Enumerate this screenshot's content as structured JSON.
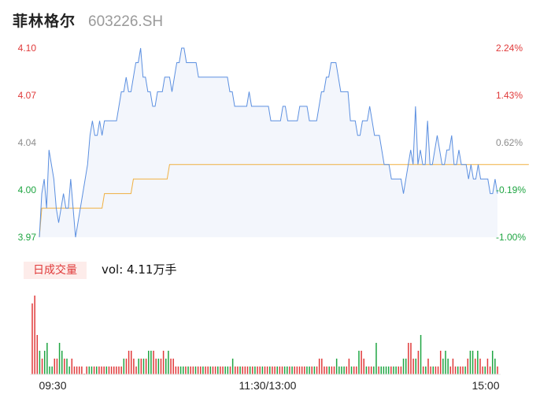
{
  "header": {
    "name": "菲林格尔",
    "code": "603226.SH"
  },
  "chart_data": [
    {
      "type": "line",
      "title": "",
      "y_left_ticks": [
        "4.10",
        "4.07",
        "4.04",
        "4.00",
        "3.97"
      ],
      "y_right_ticks": [
        "2.24%",
        "1.43%",
        "0.62%",
        "-0.19%",
        "-1.00%"
      ],
      "ylim": [
        3.97,
        4.1
      ],
      "x_ticks": [
        "09:30",
        "11:30/13:00",
        "15:00"
      ],
      "colors": {
        "price": "#5b8fe0",
        "avg": "#f0b040",
        "up": "#e03a3a",
        "down": "#1fa542",
        "neutral": "#8c8c8c"
      },
      "series": [
        {
          "values": [
            3.97,
            4.0,
            4.01,
            3.99,
            4.03,
            4.02,
            4.01,
            3.99,
            3.98,
            3.99,
            4.0,
            3.99,
            3.99,
            4.01,
            3.99,
            3.97,
            3.98,
            3.99,
            4.0,
            4.01,
            4.02,
            4.04,
            4.05,
            4.04,
            4.04,
            4.05,
            4.04,
            4.05,
            4.05,
            4.05,
            4.05,
            4.05,
            4.05,
            4.06,
            4.07,
            4.07,
            4.08,
            4.07,
            4.07,
            4.08,
            4.09,
            4.09,
            4.1,
            4.08,
            4.08,
            4.07,
            4.07,
            4.06,
            4.06,
            4.07,
            4.07,
            4.07,
            4.08,
            4.08,
            4.08,
            4.07,
            4.08,
            4.09,
            4.09,
            4.1,
            4.1,
            4.09,
            4.09,
            4.09,
            4.09,
            4.09,
            4.08,
            4.08,
            4.08,
            4.08,
            4.08,
            4.08,
            4.08,
            4.08,
            4.08,
            4.08,
            4.08,
            4.08,
            4.08,
            4.07,
            4.07,
            4.06,
            4.06,
            4.06,
            4.06,
            4.06,
            4.06,
            4.07,
            4.06,
            4.06,
            4.06,
            4.06,
            4.06,
            4.06,
            4.06,
            4.06,
            4.05,
            4.05,
            4.05,
            4.05,
            4.05,
            4.06,
            4.06,
            4.05,
            4.05,
            4.05,
            4.05,
            4.05,
            4.06,
            4.06,
            4.06,
            4.06,
            4.05,
            4.05,
            4.05,
            4.05,
            4.06,
            4.07,
            4.07,
            4.08,
            4.08,
            4.09,
            4.09,
            4.09,
            4.08,
            4.07,
            4.07,
            4.07,
            4.07,
            4.05,
            4.05,
            4.05,
            4.04,
            4.04,
            4.05,
            4.05,
            4.05,
            4.06,
            4.05,
            4.04,
            4.04,
            4.04,
            4.03,
            4.02,
            4.02,
            4.02,
            4.01,
            4.01,
            4.01,
            4.01,
            4.01,
            4.0,
            4.01,
            4.02,
            4.03,
            4.02,
            4.06,
            4.02,
            4.03,
            4.02,
            4.02,
            4.05,
            4.02,
            4.02,
            4.03,
            4.04,
            4.03,
            4.02,
            4.02,
            4.03,
            4.03,
            4.04,
            4.02,
            4.02,
            4.03,
            4.02,
            4.02,
            4.02,
            4.01,
            4.02,
            4.01,
            4.01,
            4.02,
            4.01,
            4.01,
            4.01,
            4.01,
            4.0,
            4.0,
            4.01,
            4.0
          ],
          "name": ""
        },
        {
          "values": [
            3.97,
            3.99,
            3.99,
            3.99,
            3.99,
            3.99,
            3.99,
            3.99,
            3.99,
            3.99,
            3.99,
            3.99,
            3.99,
            3.99,
            3.99,
            3.99,
            3.99,
            3.99,
            3.99,
            3.99,
            3.99,
            3.99,
            3.99,
            3.99,
            3.99,
            3.99,
            3.99,
            4.0,
            4.0,
            4.0,
            4.0,
            4.0,
            4.0,
            4.0,
            4.0,
            4.0,
            4.0,
            4.0,
            4.0,
            4.01,
            4.01,
            4.01,
            4.01,
            4.01,
            4.01,
            4.01,
            4.01,
            4.01,
            4.01,
            4.01,
            4.01,
            4.01,
            4.01,
            4.01,
            4.02,
            4.02,
            4.02,
            4.02,
            4.02,
            4.02,
            4.02,
            4.02,
            4.02,
            4.02,
            4.02,
            4.02,
            4.02,
            4.02,
            4.02,
            4.02,
            4.02,
            4.02,
            4.02,
            4.02,
            4.02,
            4.02,
            4.02,
            4.02,
            4.02,
            4.02,
            4.02,
            4.02,
            4.02,
            4.02,
            4.02,
            4.02,
            4.02,
            4.02,
            4.02,
            4.02,
            4.02,
            4.02,
            4.02,
            4.02,
            4.02,
            4.02,
            4.02,
            4.02,
            4.02,
            4.02,
            4.02,
            4.02,
            4.02,
            4.02,
            4.02,
            4.02,
            4.02,
            4.02,
            4.02,
            4.02,
            4.02,
            4.02,
            4.02,
            4.02,
            4.02,
            4.02,
            4.02,
            4.02,
            4.02,
            4.02,
            4.02,
            4.02,
            4.02,
            4.02,
            4.02,
            4.02,
            4.02,
            4.02,
            4.02,
            4.02,
            4.02,
            4.02,
            4.02,
            4.02,
            4.02,
            4.02,
            4.02,
            4.02,
            4.02,
            4.02,
            4.02,
            4.02,
            4.02,
            4.02,
            4.02,
            4.02,
            4.02,
            4.02,
            4.02,
            4.02,
            4.02,
            4.02,
            4.02,
            4.02,
            4.02,
            4.02,
            4.02,
            4.02,
            4.02,
            4.02,
            4.02,
            4.02,
            4.02,
            4.02,
            4.02,
            4.02,
            4.02,
            4.02,
            4.02,
            4.02,
            4.02,
            4.02,
            4.02,
            4.02,
            4.02,
            4.02,
            4.02,
            4.02,
            4.02,
            4.02,
            4.02,
            4.02,
            4.02,
            4.02,
            4.02,
            4.02,
            4.02,
            4.02,
            4.02,
            4.02,
            4.02,
            4.02,
            4.02,
            4.02,
            4.02,
            4.02,
            4.02,
            4.02,
            4.02,
            4.02,
            4.02,
            4.02,
            4.02,
            4.02
          ],
          "name": ""
        }
      ]
    },
    {
      "type": "bar",
      "tag_label": "日成交量",
      "summary_label": "vol: 4.11万手",
      "series": [
        {
          "values": [
            0.9,
            1.0,
            0.5,
            0.3,
            0.2,
            0.3,
            0.4,
            0.1,
            0.1,
            0.2,
            0.2,
            0.4,
            0.3,
            0.2,
            0.2,
            0.1,
            0.2,
            0.1,
            0.1,
            0.1,
            0.1,
            0.0,
            0.1,
            0.1,
            0.1,
            0.1,
            0.1,
            0.1,
            0.1,
            0.1,
            0.1,
            0.1,
            0.1,
            0.1,
            0.1,
            0.1,
            0.1,
            0.2,
            0.2,
            0.3,
            0.3,
            0.2,
            0.1,
            0.2,
            0.2,
            0.2,
            0.2,
            0.3,
            0.3,
            0.3,
            0.2,
            0.2,
            0.2,
            0.3,
            0.2,
            0.3,
            0.2,
            0.2,
            0.1,
            0.1,
            0.1,
            0.1,
            0.1,
            0.1,
            0.1,
            0.1,
            0.1,
            0.1,
            0.1,
            0.1,
            0.1,
            0.1,
            0.1,
            0.1,
            0.1,
            0.1,
            0.1,
            0.1,
            0.1,
            0.1,
            0.1,
            0.2,
            0.1,
            0.1,
            0.1,
            0.1,
            0.1,
            0.1,
            0.1,
            0.1,
            0.1,
            0.1,
            0.1,
            0.1,
            0.1,
            0.1,
            0.1,
            0.1,
            0.1,
            0.1,
            0.1,
            0.1,
            0.1,
            0.1,
            0.1,
            0.1,
            0.1,
            0.1,
            0.1,
            0.1,
            0.1,
            0.1,
            0.1,
            0.1,
            0.1,
            0.1,
            0.2,
            0.2,
            0.1,
            0.1,
            0.1,
            0.1,
            0.1,
            0.2,
            0.1,
            0.1,
            0.1,
            0.1,
            0.2,
            0.1,
            0.1,
            0.1,
            0.3,
            0.3,
            0.2,
            0.1,
            0.1,
            0.1,
            0.1,
            0.4,
            0.1,
            0.1,
            0.1,
            0.1,
            0.1,
            0.1,
            0.1,
            0.1,
            0.1,
            0.1,
            0.2,
            0.2,
            0.4,
            0.4,
            0.2,
            0.2,
            0.3,
            0.5,
            0.1,
            0.1,
            0.2,
            0.1,
            0.1,
            0.1,
            0.1,
            0.3,
            0.2,
            0.3,
            0.2,
            0.1,
            0.2,
            0.1,
            0.1,
            0.1,
            0.1,
            0.1,
            0.2,
            0.3,
            0.3,
            0.2,
            0.3,
            0.2,
            0.1,
            0.1,
            0.2,
            0.1,
            0.3,
            0.2,
            0.1
          ],
          "name": ""
        }
      ]
    }
  ]
}
